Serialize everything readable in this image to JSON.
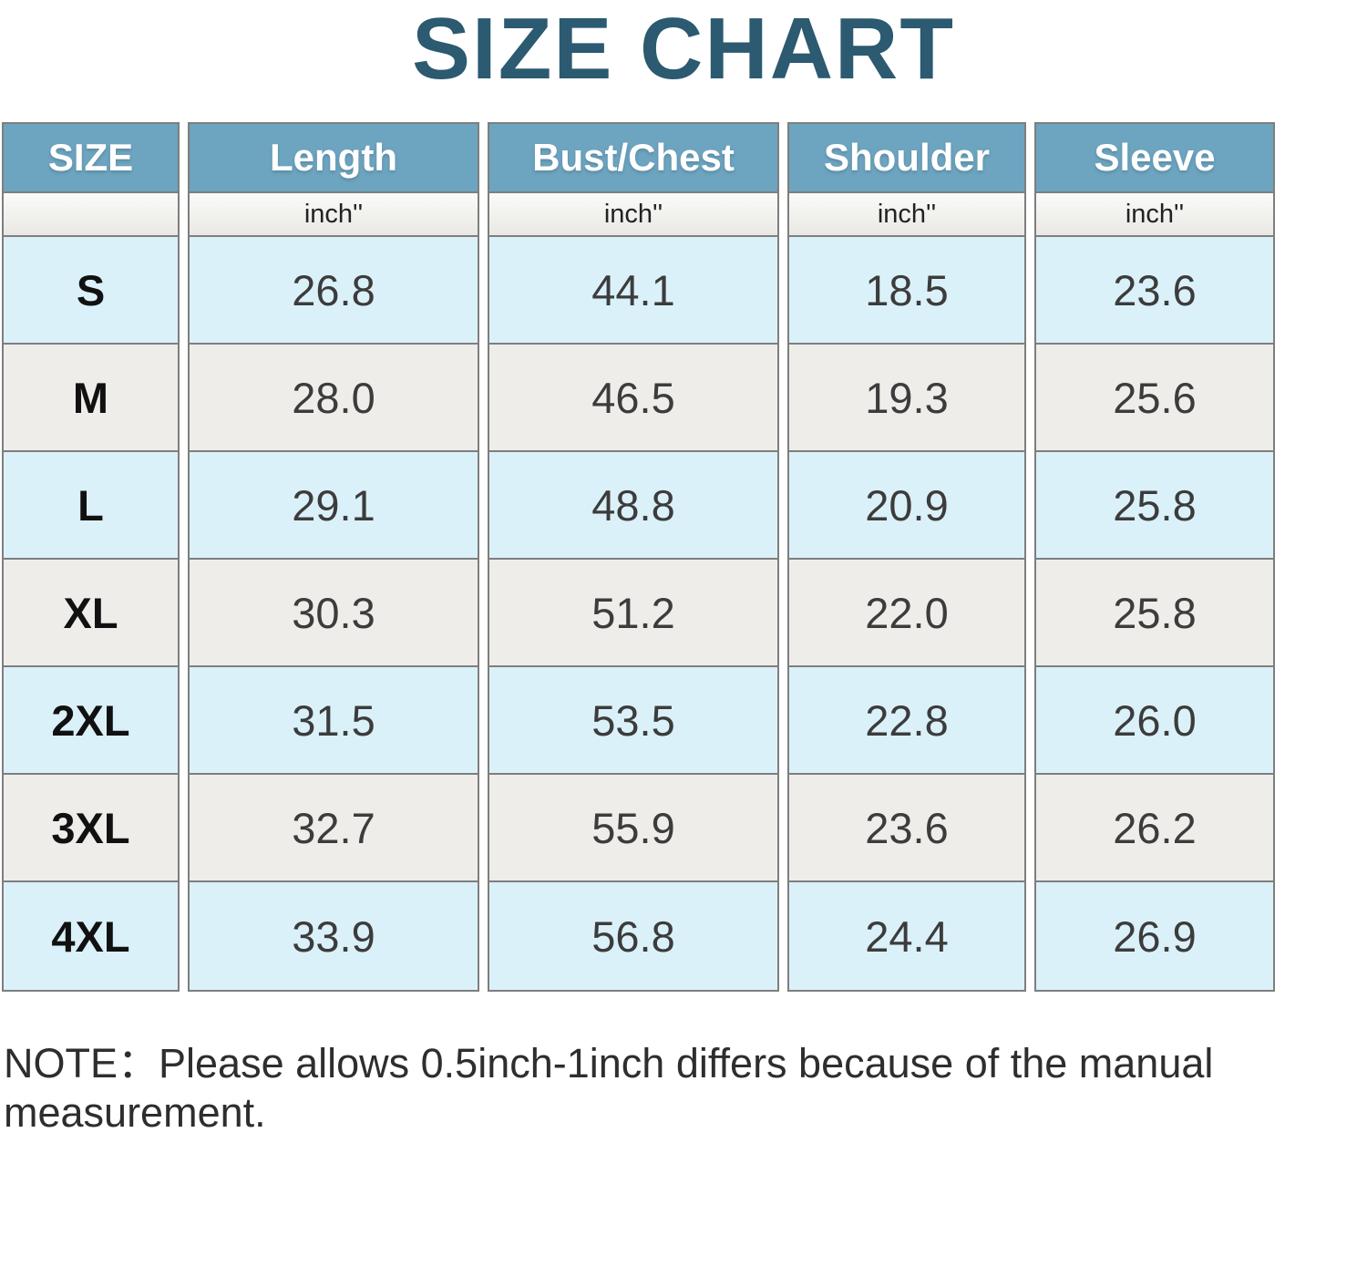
{
  "title": "SIZE CHART",
  "note": "NOTE：Please allows 0.5inch-1inch differs because of the manual measurement.",
  "chart_data": {
    "type": "table",
    "title": "SIZE CHART",
    "columns": [
      "SIZE",
      "Length",
      "Bust/Chest",
      "Shoulder",
      "Sleeve"
    ],
    "units_row": [
      "",
      "inch''",
      "inch''",
      "inch''",
      "inch''"
    ],
    "rows": [
      [
        "S",
        "26.8",
        "44.1",
        "18.5",
        "23.6"
      ],
      [
        "M",
        "28.0",
        "46.5",
        "19.3",
        "25.6"
      ],
      [
        "L",
        "29.1",
        "48.8",
        "20.9",
        "25.8"
      ],
      [
        "XL",
        "30.3",
        "51.2",
        "22.0",
        "25.8"
      ],
      [
        "2XL",
        "31.5",
        "53.5",
        "22.8",
        "26.0"
      ],
      [
        "3XL",
        "32.7",
        "55.9",
        "23.6",
        "26.2"
      ],
      [
        "4XL",
        "33.9",
        "56.8",
        "24.4",
        "26.9"
      ]
    ],
    "layout": {
      "row_striping": "odd rows light blue, even rows light gray, starting blue at S",
      "legend": "none",
      "grid": "solid gray cell borders, white gaps between columns"
    }
  },
  "colors": {
    "title_text": "#2B5A71",
    "header_bg": "#6DA4BF",
    "header_text": "#FFFFFF",
    "row_blue": "#DBF1F9",
    "row_gray": "#EFEDEA",
    "unit_bg_top": "#FBFBF9",
    "unit_bg_bottom": "#E9E8E4",
    "border": "#7E7E7E",
    "value_text": "#3C3C3C",
    "size_text": "#111111",
    "note_text": "#2E2E2E"
  }
}
